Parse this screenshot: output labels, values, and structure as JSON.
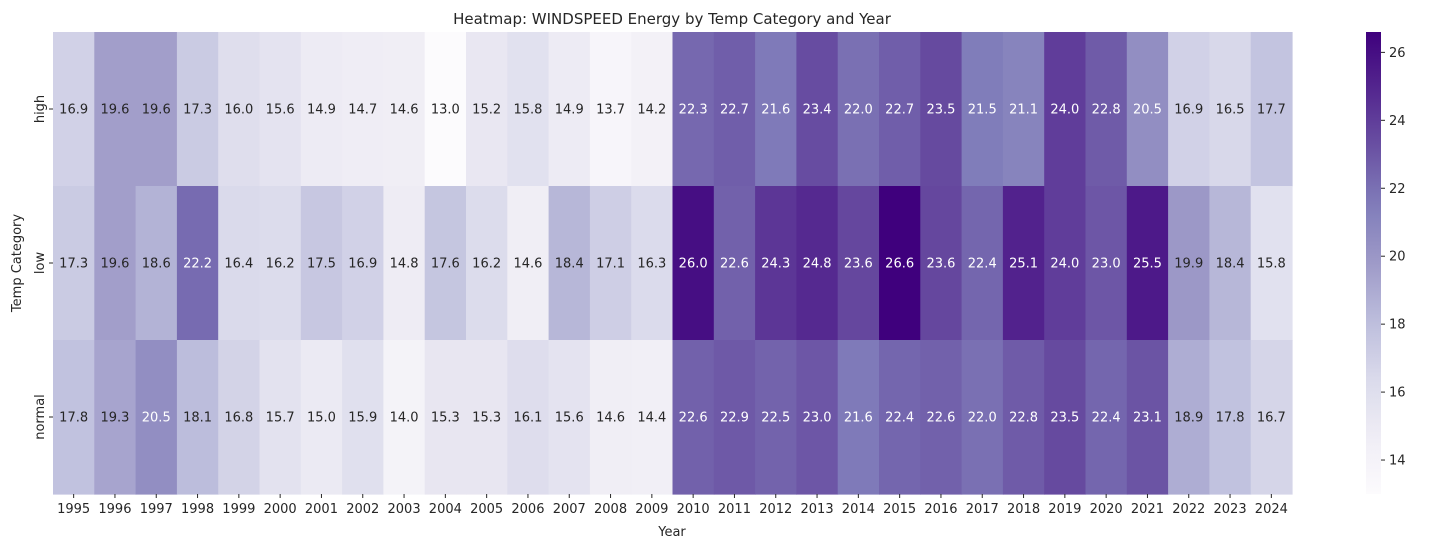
{
  "chart_data": {
    "type": "heatmap",
    "title": "Heatmap: WINDSPEED Energy by Temp Category and Year",
    "xlabel": "Year",
    "ylabel": "Temp Category",
    "x_categories": [
      "1995",
      "1996",
      "1997",
      "1998",
      "1999",
      "2000",
      "2001",
      "2002",
      "2003",
      "2004",
      "2005",
      "2006",
      "2007",
      "2008",
      "2009",
      "2010",
      "2011",
      "2012",
      "2013",
      "2014",
      "2015",
      "2016",
      "2017",
      "2018",
      "2019",
      "2020",
      "2021",
      "2022",
      "2023",
      "2024"
    ],
    "y_categories": [
      "high",
      "low",
      "normal"
    ],
    "values": [
      [
        16.9,
        19.6,
        19.6,
        17.3,
        16.0,
        15.6,
        14.9,
        14.7,
        14.6,
        13.0,
        15.2,
        15.8,
        14.9,
        13.7,
        14.2,
        22.3,
        22.7,
        21.6,
        23.4,
        22.0,
        22.7,
        23.5,
        21.5,
        21.1,
        24.0,
        22.8,
        20.5,
        16.9,
        16.5,
        17.7
      ],
      [
        17.3,
        19.6,
        18.6,
        22.2,
        16.4,
        16.2,
        17.5,
        16.9,
        14.8,
        17.6,
        16.2,
        14.6,
        18.4,
        17.1,
        16.3,
        26.0,
        22.6,
        24.3,
        24.8,
        23.6,
        26.6,
        23.6,
        22.4,
        25.1,
        24.0,
        23.0,
        25.5,
        19.9,
        18.4,
        15.8
      ],
      [
        17.8,
        19.3,
        20.5,
        18.1,
        16.8,
        15.7,
        15.0,
        15.9,
        14.0,
        15.3,
        15.3,
        16.1,
        15.6,
        14.6,
        14.4,
        22.6,
        22.9,
        22.5,
        23.0,
        21.6,
        22.4,
        22.6,
        22.0,
        22.8,
        23.5,
        22.4,
        23.1,
        18.9,
        17.8,
        16.7
      ]
    ],
    "colormap": "Purples",
    "color_range": [
      13.0,
      26.6
    ],
    "colorbar_ticks": [
      "14",
      "16",
      "18",
      "20",
      "22",
      "24",
      "26"
    ],
    "colorbar_tick_values": [
      14,
      16,
      18,
      20,
      22,
      24,
      26
    ],
    "value_format": "one decimal"
  }
}
